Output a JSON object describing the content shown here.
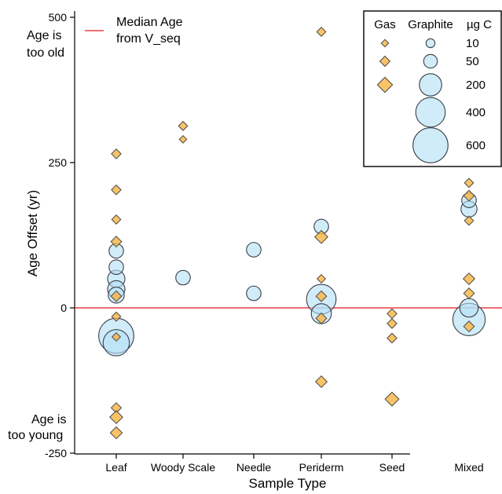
{
  "chart_data": {
    "type": "scatter",
    "xlabel": "Sample Type",
    "ylabel": "Age Offset (yr)",
    "categories": [
      "Leaf",
      "Woody Scale",
      "Needle",
      "Periderm",
      "Seed",
      "Mixed"
    ],
    "y_ticks": [
      "-250",
      "0",
      "250",
      "500"
    ],
    "ylim": [
      -250,
      510
    ],
    "annotations": {
      "top": [
        "Age is",
        "too old"
      ],
      "bottom": [
        "Age is",
        "too young"
      ]
    },
    "reference_line": {
      "label": [
        "Median Age",
        "from V_seq"
      ],
      "y": 0,
      "color": "#e8171f"
    },
    "series": [
      {
        "name": "Gas",
        "marker": "diamond",
        "color": "#f7b445",
        "points": [
          {
            "category": "Leaf",
            "y": 265,
            "ugC": 40
          },
          {
            "category": "Leaf",
            "y": 203,
            "ugC": 40
          },
          {
            "category": "Leaf",
            "y": 152,
            "ugC": 30
          },
          {
            "category": "Leaf",
            "y": 114,
            "ugC": 60
          },
          {
            "category": "Leaf",
            "y": 20,
            "ugC": 60
          },
          {
            "category": "Leaf",
            "y": -15,
            "ugC": 30
          },
          {
            "category": "Leaf",
            "y": -50,
            "ugC": 20
          },
          {
            "category": "Leaf",
            "y": -172,
            "ugC": 50
          },
          {
            "category": "Leaf",
            "y": -188,
            "ugC": 120
          },
          {
            "category": "Leaf",
            "y": -215,
            "ugC": 90
          },
          {
            "category": "Woody Scale",
            "y": 313,
            "ugC": 30
          },
          {
            "category": "Woody Scale",
            "y": 290,
            "ugC": 10
          },
          {
            "category": "Periderm",
            "y": 475,
            "ugC": 30
          },
          {
            "category": "Periderm",
            "y": 122,
            "ugC": 120
          },
          {
            "category": "Periderm",
            "y": 50,
            "ugC": 20
          },
          {
            "category": "Periderm",
            "y": 20,
            "ugC": 60
          },
          {
            "category": "Periderm",
            "y": -18,
            "ugC": 60
          },
          {
            "category": "Periderm",
            "y": -127,
            "ugC": 80
          },
          {
            "category": "Seed",
            "y": -10,
            "ugC": 40
          },
          {
            "category": "Seed",
            "y": -27,
            "ugC": 40
          },
          {
            "category": "Seed",
            "y": -52,
            "ugC": 40
          },
          {
            "category": "Seed",
            "y": -157,
            "ugC": 150
          },
          {
            "category": "Mixed",
            "y": 215,
            "ugC": 30
          },
          {
            "category": "Mixed",
            "y": 193,
            "ugC": 60
          },
          {
            "category": "Mixed",
            "y": 150,
            "ugC": 30
          },
          {
            "category": "Mixed",
            "y": 50,
            "ugC": 80
          },
          {
            "category": "Mixed",
            "y": 25,
            "ugC": 60
          },
          {
            "category": "Mixed",
            "y": -32,
            "ugC": 60
          }
        ]
      },
      {
        "name": "Graphite",
        "marker": "circle",
        "color": "#b3e0f5",
        "points": [
          {
            "category": "Leaf",
            "y": 98,
            "ugC": 60
          },
          {
            "category": "Leaf",
            "y": 70,
            "ugC": 60
          },
          {
            "category": "Leaf",
            "y": 50,
            "ugC": 100
          },
          {
            "category": "Leaf",
            "y": 32,
            "ugC": 100
          },
          {
            "category": "Leaf",
            "y": 22,
            "ugC": 80
          },
          {
            "category": "Leaf",
            "y": -60,
            "ugC": 300
          },
          {
            "category": "Leaf",
            "y": -48,
            "ugC": 600
          },
          {
            "category": "Woody Scale",
            "y": 52,
            "ugC": 60
          },
          {
            "category": "Needle",
            "y": 100,
            "ugC": 60
          },
          {
            "category": "Needle",
            "y": 25,
            "ugC": 60
          },
          {
            "category": "Periderm",
            "y": 140,
            "ugC": 60
          },
          {
            "category": "Periderm",
            "y": 15,
            "ugC": 400
          },
          {
            "category": "Periderm",
            "y": -10,
            "ugC": 150
          },
          {
            "category": "Mixed",
            "y": 185,
            "ugC": 60
          },
          {
            "category": "Mixed",
            "y": 170,
            "ugC": 80
          },
          {
            "category": "Mixed",
            "y": 0,
            "ugC": 120
          },
          {
            "category": "Mixed",
            "y": -20,
            "ugC": 500
          }
        ]
      }
    ],
    "legend": {
      "position": "top-right",
      "headers": [
        "Gas",
        "Graphite",
        "µg C"
      ],
      "sizes": [
        {
          "label": "10",
          "ugC": 10,
          "gas": true
        },
        {
          "label": "50",
          "ugC": 50,
          "gas": true
        },
        {
          "label": "200",
          "ugC": 200,
          "gas": true
        },
        {
          "label": "400",
          "ugC": 400,
          "gas": false
        },
        {
          "label": "600",
          "ugC": 600,
          "gas": false
        }
      ]
    },
    "grid": false
  }
}
